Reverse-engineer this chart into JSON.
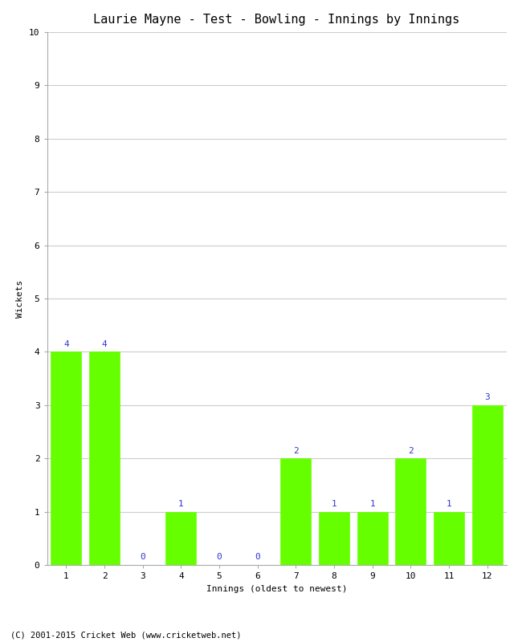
{
  "title": "Laurie Mayne - Test - Bowling - Innings by Innings",
  "xlabel": "Innings (oldest to newest)",
  "ylabel": "Wickets",
  "categories": [
    "1",
    "2",
    "3",
    "4",
    "5",
    "6",
    "7",
    "8",
    "9",
    "10",
    "11",
    "12"
  ],
  "values": [
    4,
    4,
    0,
    1,
    0,
    0,
    2,
    1,
    1,
    2,
    1,
    3
  ],
  "bar_color": "#66ff00",
  "bar_edge_color": "#66ff00",
  "label_color": "#3333cc",
  "ylim": [
    0,
    10
  ],
  "yticks": [
    0,
    1,
    2,
    3,
    4,
    5,
    6,
    7,
    8,
    9,
    10
  ],
  "background_color": "#ffffff",
  "grid_color": "#cccccc",
  "title_fontsize": 11,
  "axis_label_fontsize": 8,
  "tick_fontsize": 8,
  "bar_label_fontsize": 8,
  "footer_text": "(C) 2001-2015 Cricket Web (www.cricketweb.net)",
  "footer_fontsize": 7.5
}
